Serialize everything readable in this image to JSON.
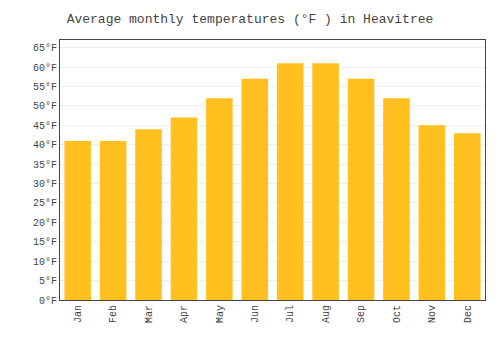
{
  "chart_data": {
    "type": "bar",
    "title": "Average monthly temperatures (°F ) in Heavitree",
    "categories": [
      "Jan",
      "Feb",
      "Mar",
      "Apr",
      "May",
      "Jun",
      "Jul",
      "Aug",
      "Sep",
      "Oct",
      "Nov",
      "Dec"
    ],
    "values": [
      41,
      41,
      44,
      47,
      52,
      57,
      61,
      61,
      57,
      52,
      45,
      43
    ],
    "color": "#FFC020",
    "ylim": [
      0,
      67
    ],
    "yticks": [
      {
        "value": 0,
        "label": "0°F"
      },
      {
        "value": 5,
        "label": "5°F"
      },
      {
        "value": 10,
        "label": "10°F"
      },
      {
        "value": 15,
        "label": "15°F"
      },
      {
        "value": 20,
        "label": "20°F"
      },
      {
        "value": 25,
        "label": "25°F"
      },
      {
        "value": 30,
        "label": "30°F"
      },
      {
        "value": 35,
        "label": "35°F"
      },
      {
        "value": 40,
        "label": "40°F"
      },
      {
        "value": 45,
        "label": "45°F"
      },
      {
        "value": 50,
        "label": "50°F"
      },
      {
        "value": 55,
        "label": "55°F"
      },
      {
        "value": 60,
        "label": "60°F"
      },
      {
        "value": 65,
        "label": "65°F"
      }
    ],
    "grid": true
  }
}
